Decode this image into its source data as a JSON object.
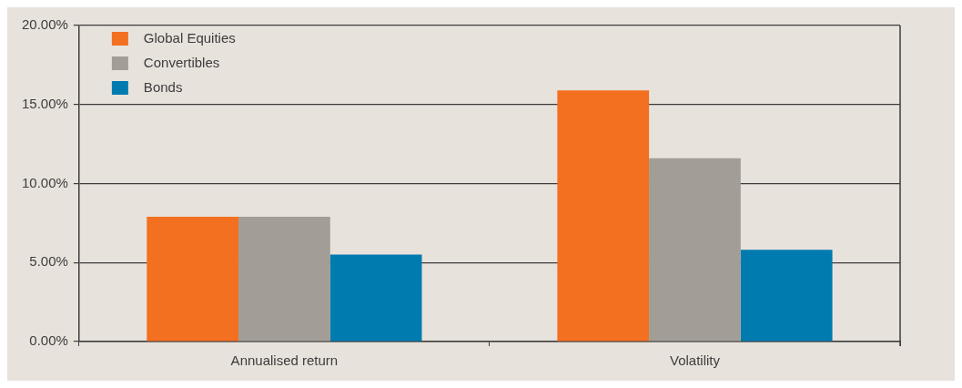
{
  "chart_data": {
    "type": "bar",
    "categories": [
      "Annualised return",
      "Volatility"
    ],
    "series": [
      {
        "name": "Global Equities",
        "color": "#f37021",
        "values": [
          7.9,
          15.9
        ]
      },
      {
        "name": "Convertibles",
        "color": "#a29d96",
        "values": [
          7.9,
          11.6
        ]
      },
      {
        "name": "Bonds",
        "color": "#007bb0",
        "values": [
          5.5,
          5.8
        ]
      }
    ],
    "ylim": [
      0,
      20
    ],
    "yticks": [
      {
        "value": 0,
        "label": "0.00%"
      },
      {
        "value": 5,
        "label": "5.00%"
      },
      {
        "value": 10,
        "label": "10.00%"
      },
      {
        "value": 15,
        "label": "15.00%"
      },
      {
        "value": 20,
        "label": "20.00%"
      }
    ],
    "grid": "y",
    "legend": "top left"
  }
}
